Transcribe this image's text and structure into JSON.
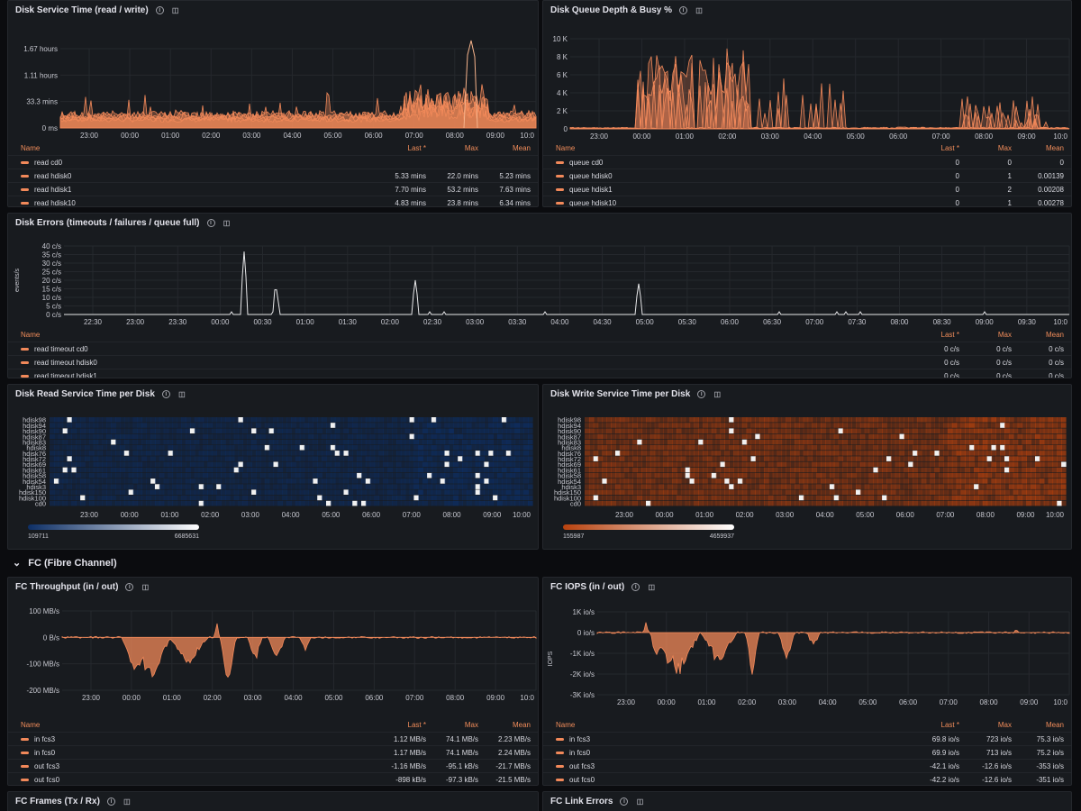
{
  "section": {
    "label": "FC (Fibre Channel)"
  },
  "panels": {
    "svc": {
      "title": "Disk Service Time (read / write)",
      "yticks": [
        "1.67 hours",
        "1.11 hours",
        "33.3 mins",
        "0 ms"
      ],
      "xticks": [
        "23:00",
        "00:00",
        "01:00",
        "02:00",
        "03:00",
        "04:00",
        "05:00",
        "06:00",
        "07:00",
        "08:00",
        "09:00",
        "10:0"
      ],
      "legend_head": [
        "Name",
        "Last *",
        "Max",
        "Mean"
      ],
      "rows": [
        [
          "read cd0",
          "",
          "",
          ""
        ],
        [
          "read hdisk0",
          "5.33 mins",
          "22.0 mins",
          "5.23 mins"
        ],
        [
          "read hdisk1",
          "7.70 mins",
          "53.2 mins",
          "7.63 mins"
        ],
        [
          "read hdisk10",
          "4.83 mins",
          "23.8 mins",
          "6.34 mins"
        ]
      ]
    },
    "queue": {
      "title": "Disk Queue Depth & Busy %",
      "yticks": [
        "10 K",
        "8 K",
        "6 K",
        "4 K",
        "2 K",
        "0"
      ],
      "xticks": [
        "23:00",
        "00:00",
        "01:00",
        "02:00",
        "03:00",
        "04:00",
        "05:00",
        "06:00",
        "07:00",
        "08:00",
        "09:00",
        "10:0"
      ],
      "legend_head": [
        "Name",
        "Last *",
        "Max",
        "Mean"
      ],
      "rows": [
        [
          "queue cd0",
          "0",
          "0",
          "0"
        ],
        [
          "queue hdisk0",
          "0",
          "1",
          "0.00139"
        ],
        [
          "queue hdisk1",
          "0",
          "2",
          "0.00208"
        ],
        [
          "queue hdisk10",
          "0",
          "1",
          "0.00278"
        ]
      ]
    },
    "errors": {
      "title": "Disk Errors (timeouts / failures / queue full)",
      "ylabel": "events/s",
      "yticks": [
        "40 c/s",
        "35 c/s",
        "30 c/s",
        "25 c/s",
        "20 c/s",
        "15 c/s",
        "10 c/s",
        "5 c/s",
        "0 c/s"
      ],
      "xticks": [
        "22:30",
        "23:00",
        "23:30",
        "00:00",
        "00:30",
        "01:00",
        "01:30",
        "02:00",
        "02:30",
        "03:00",
        "03:30",
        "04:00",
        "04:30",
        "05:00",
        "05:30",
        "06:00",
        "06:30",
        "07:00",
        "07:30",
        "08:00",
        "08:30",
        "09:00",
        "09:30",
        "10:0"
      ],
      "legend_head": [
        "Name",
        "Last *",
        "Max",
        "Mean"
      ],
      "rows": [
        [
          "read timeout cd0",
          "0 c/s",
          "0 c/s",
          "0 c/s"
        ],
        [
          "read timeout hdisk0",
          "0 c/s",
          "0 c/s",
          "0 c/s"
        ],
        [
          "read timeout hdisk1",
          "0 c/s",
          "0 c/s",
          "0 c/s"
        ]
      ]
    },
    "readheat": {
      "title": "Disk Read Service Time per Disk",
      "ylabels": [
        "hdisk98",
        "hdisk94",
        "hdisk90",
        "hdisk87",
        "hdisk83",
        "hdisk8",
        "hdisk76",
        "hdisk72",
        "hdisk69",
        "hdisk61",
        "hdisk58",
        "hdisk54",
        "hdisk3",
        "hdisk150",
        "hdisk100",
        "cd0"
      ],
      "xticks": [
        "23:00",
        "00:00",
        "01:00",
        "02:00",
        "03:00",
        "04:00",
        "05:00",
        "06:00",
        "07:00",
        "08:00",
        "09:00",
        "10:00"
      ],
      "scale_min": "109711",
      "scale_max": "6685631",
      "color_low": "#0d2f66",
      "color_high": "#ffffff"
    },
    "writeheat": {
      "title": "Disk Write Service Time per Disk",
      "ylabels": [
        "hdisk98",
        "hdisk94",
        "hdisk90",
        "hdisk87",
        "hdisk83",
        "hdisk8",
        "hdisk76",
        "hdisk72",
        "hdisk69",
        "hdisk61",
        "hdisk58",
        "hdisk54",
        "hdisk3",
        "hdisk150",
        "hdisk100",
        "cd0"
      ],
      "xticks": [
        "23:00",
        "00:00",
        "01:00",
        "02:00",
        "03:00",
        "04:00",
        "05:00",
        "06:00",
        "07:00",
        "08:00",
        "09:00",
        "10:00"
      ],
      "scale_min": "155987",
      "scale_max": "4659937",
      "color_low": "#b8420e",
      "color_high": "#ffffff"
    },
    "fcthru": {
      "title": "FC Throughput (in / out)",
      "yticks": [
        "100 MB/s",
        "0 B/s",
        "-100 MB/s",
        "-200 MB/s"
      ],
      "xticks": [
        "23:00",
        "00:00",
        "01:00",
        "02:00",
        "03:00",
        "04:00",
        "05:00",
        "06:00",
        "07:00",
        "08:00",
        "09:00",
        "10:0"
      ],
      "legend_head": [
        "Name",
        "Last *",
        "Max",
        "Mean"
      ],
      "rows": [
        [
          "in fcs3",
          "1.12 MB/s",
          "74.1 MB/s",
          "2.23 MB/s"
        ],
        [
          "in fcs0",
          "1.17 MB/s",
          "74.1 MB/s",
          "2.24 MB/s"
        ],
        [
          "out fcs3",
          "-1.16 MB/s",
          "-95.1 kB/s",
          "-21.7 MB/s"
        ],
        [
          "out fcs0",
          "-898 kB/s",
          "-97.3 kB/s",
          "-21.5 MB/s"
        ]
      ]
    },
    "fciops": {
      "title": "FC IOPS (in / out)",
      "ylabel": "IOPS",
      "yticks": [
        "1K io/s",
        "0 io/s",
        "-1K io/s",
        "-2K io/s",
        "-3K io/s"
      ],
      "xticks": [
        "23:00",
        "00:00",
        "01:00",
        "02:00",
        "03:00",
        "04:00",
        "05:00",
        "06:00",
        "07:00",
        "08:00",
        "09:00",
        "10:0"
      ],
      "legend_head": [
        "Name",
        "Last *",
        "Max",
        "Mean"
      ],
      "rows": [
        [
          "in fcs3",
          "69.8 io/s",
          "723 io/s",
          "75.3 io/s"
        ],
        [
          "in fcs0",
          "69.9 io/s",
          "713 io/s",
          "75.2 io/s"
        ],
        [
          "out fcs3",
          "-42.1 io/s",
          "-12.6 io/s",
          "-353 io/s"
        ],
        [
          "out fcs0",
          "-42.2 io/s",
          "-12.6 io/s",
          "-351 io/s"
        ]
      ]
    },
    "fcframes": {
      "title": "FC Frames (Tx / Rx)"
    },
    "fclink": {
      "title": "FC Link Errors"
    }
  },
  "colors": {
    "series": "#f2895a",
    "grid": "#25282d",
    "axis_text": "#c7c8d0",
    "errors_line": "#e8e8ea"
  }
}
